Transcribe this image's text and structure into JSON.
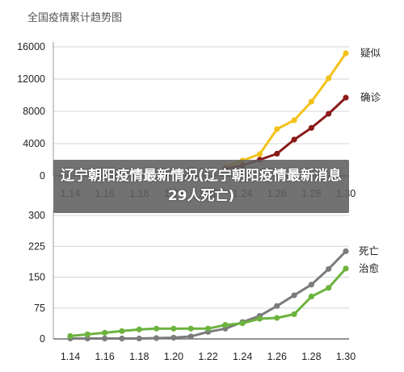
{
  "page_title": "全国疫情累计趋势图",
  "banner": "辽宁朝阳疫情最新情况(辽宁朝阳疫情最新消息29人死亡)",
  "chart_data": [
    {
      "type": "line",
      "x": [
        "1.14",
        "1.15",
        "1.16",
        "1.17",
        "1.18",
        "1.19",
        "1.20",
        "1.21",
        "1.22",
        "1.23",
        "1.24",
        "1.25",
        "1.26",
        "1.27",
        "1.28",
        "1.29",
        "1.30"
      ],
      "xticks": [
        "1.14",
        "1.16",
        "1.18",
        "1.20",
        "1.22",
        "1.24",
        "1.26",
        "1.28",
        "1.30"
      ],
      "ylim": [
        0,
        16000
      ],
      "yticks": [
        "0",
        "4000",
        "8000",
        "12000",
        "16000"
      ],
      "grid": true,
      "series": [
        {
          "name": "疑似",
          "color": "#f2c21a",
          "values": [
            null,
            null,
            null,
            null,
            null,
            null,
            null,
            null,
            null,
            1100,
            1900,
            2700,
            5800,
            6900,
            9200,
            12100,
            15200
          ]
        },
        {
          "name": "确诊",
          "color": "#8b1a1a",
          "values": [
            null,
            null,
            null,
            null,
            null,
            null,
            null,
            null,
            null,
            900,
            1300,
            2000,
            2750,
            4500,
            5950,
            7700,
            9700
          ]
        }
      ]
    },
    {
      "type": "line",
      "x": [
        "1.14",
        "1.15",
        "1.16",
        "1.17",
        "1.18",
        "1.19",
        "1.20",
        "1.21",
        "1.22",
        "1.23",
        "1.24",
        "1.25",
        "1.26",
        "1.27",
        "1.28",
        "1.29",
        "1.30"
      ],
      "xticks": [
        "1.14",
        "1.16",
        "1.18",
        "1.20",
        "1.22",
        "1.24",
        "1.26",
        "1.28",
        "1.30"
      ],
      "ylim": [
        0,
        300
      ],
      "yticks": [
        "0",
        "75",
        "150",
        "225",
        "300"
      ],
      "grid": true,
      "series": [
        {
          "name": "死亡",
          "color": "#7c7c7c",
          "values": [
            1,
            1,
            1,
            1,
            1,
            2,
            3,
            6,
            17,
            25,
            41,
            56,
            80,
            106,
            132,
            170,
            213
          ]
        },
        {
          "name": "治愈",
          "color": "#6cb33e",
          "values": [
            7,
            11,
            15,
            19,
            23,
            25,
            25,
            25,
            25,
            34,
            38,
            49,
            51,
            60,
            103,
            124,
            171
          ]
        }
      ]
    }
  ]
}
